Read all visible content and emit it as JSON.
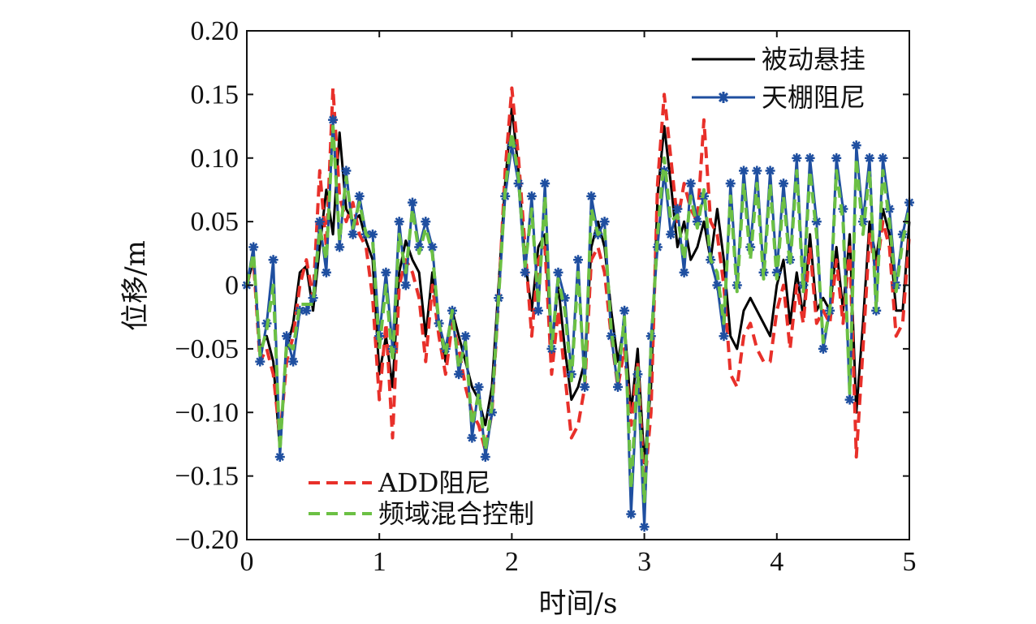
{
  "chart_data": {
    "type": "line",
    "xlabel": "时间/s",
    "ylabel": "位移/m",
    "xlim": [
      0,
      5
    ],
    "ylim": [
      -0.2,
      0.2
    ],
    "x_ticks": [
      0,
      1,
      2,
      3,
      4,
      5
    ],
    "x_tick_labels": [
      "0",
      "1",
      "2",
      "3",
      "4",
      "5"
    ],
    "y_ticks": [
      0.2,
      0.15,
      0.1,
      0.05,
      0,
      -0.05,
      -0.1,
      -0.15,
      -0.2
    ],
    "y_tick_labels": [
      "0.20",
      "0.15",
      "0.10",
      "0.05",
      "0",
      "−0.05",
      "−0.10",
      "−0.15",
      "−0.20"
    ],
    "grid": false,
    "legend_upper": {
      "placement": "top-right",
      "entries": [
        "被动悬挂",
        "天棚阻尼"
      ]
    },
    "legend_lower": {
      "placement": "bottom-left",
      "entries": [
        "ADD阻尼",
        "频域混合控制"
      ]
    },
    "series": [
      {
        "name": "被动悬挂",
        "color": "#000000",
        "style": "solid",
        "x": [
          0,
          0.05,
          0.1,
          0.15,
          0.2,
          0.25,
          0.3,
          0.35,
          0.4,
          0.45,
          0.5,
          0.55,
          0.6,
          0.65,
          0.7,
          0.75,
          0.8,
          0.85,
          0.9,
          0.95,
          1.0,
          1.05,
          1.1,
          1.15,
          1.2,
          1.25,
          1.3,
          1.35,
          1.4,
          1.45,
          1.5,
          1.55,
          1.6,
          1.65,
          1.7,
          1.75,
          1.8,
          1.85,
          1.9,
          1.95,
          2.0,
          2.05,
          2.1,
          2.15,
          2.2,
          2.25,
          2.3,
          2.35,
          2.4,
          2.45,
          2.5,
          2.55,
          2.6,
          2.65,
          2.7,
          2.75,
          2.8,
          2.85,
          2.9,
          2.95,
          3.0,
          3.05,
          3.1,
          3.15,
          3.2,
          3.25,
          3.3,
          3.35,
          3.4,
          3.45,
          3.5,
          3.55,
          3.6,
          3.65,
          3.7,
          3.75,
          3.8,
          3.85,
          3.9,
          3.95,
          4.0,
          4.05,
          4.1,
          4.15,
          4.2,
          4.25,
          4.3,
          4.35,
          4.4,
          4.45,
          4.5,
          4.55,
          4.6,
          4.65,
          4.7,
          4.75,
          4.8,
          4.85,
          4.9,
          4.95,
          5.0
        ],
        "y": [
          0.0,
          0.02,
          -0.05,
          -0.04,
          -0.06,
          -0.13,
          -0.05,
          -0.03,
          0.01,
          0.015,
          -0.02,
          0.03,
          0.075,
          0.04,
          0.12,
          0.06,
          0.05,
          0.055,
          0.035,
          0.02,
          -0.07,
          -0.04,
          -0.08,
          0.01,
          0.035,
          0.02,
          0.01,
          -0.04,
          0.01,
          -0.03,
          -0.06,
          -0.02,
          -0.04,
          -0.06,
          -0.08,
          -0.09,
          -0.11,
          -0.08,
          0.0,
          0.08,
          0.14,
          0.09,
          0.02,
          -0.02,
          0.03,
          0.04,
          -0.05,
          0.0,
          -0.05,
          -0.09,
          -0.08,
          -0.06,
          0.03,
          0.05,
          0.03,
          -0.02,
          -0.06,
          -0.03,
          -0.1,
          -0.05,
          -0.14,
          -0.08,
          0.07,
          0.125,
          0.08,
          0.03,
          0.05,
          0.02,
          0.03,
          0.05,
          0.02,
          0.06,
          0.02,
          -0.04,
          -0.05,
          -0.02,
          -0.01,
          -0.02,
          -0.03,
          -0.04,
          0.0,
          0.02,
          -0.03,
          0.01,
          -0.025,
          0.04,
          -0.02,
          -0.01,
          -0.02,
          0.03,
          -0.02,
          0.04,
          -0.1,
          -0.03,
          0.05,
          0.02,
          0.06,
          0.04,
          -0.02,
          -0.02,
          0.05
        ]
      },
      {
        "name": "天棚阻尼",
        "color": "#1f4fa0",
        "style": "solid-with-asterisk-markers",
        "x": [
          0,
          0.05,
          0.1,
          0.15,
          0.2,
          0.25,
          0.3,
          0.35,
          0.4,
          0.45,
          0.5,
          0.55,
          0.6,
          0.65,
          0.7,
          0.75,
          0.8,
          0.85,
          0.9,
          0.95,
          1.0,
          1.05,
          1.1,
          1.15,
          1.2,
          1.25,
          1.3,
          1.35,
          1.4,
          1.45,
          1.5,
          1.55,
          1.6,
          1.65,
          1.7,
          1.75,
          1.8,
          1.85,
          1.9,
          1.95,
          2.0,
          2.05,
          2.1,
          2.15,
          2.2,
          2.25,
          2.3,
          2.35,
          2.4,
          2.45,
          2.5,
          2.55,
          2.6,
          2.65,
          2.7,
          2.75,
          2.8,
          2.85,
          2.9,
          2.95,
          3.0,
          3.05,
          3.1,
          3.15,
          3.2,
          3.25,
          3.3,
          3.35,
          3.4,
          3.45,
          3.5,
          3.55,
          3.6,
          3.65,
          3.7,
          3.75,
          3.8,
          3.85,
          3.9,
          3.95,
          4.0,
          4.05,
          4.1,
          4.15,
          4.2,
          4.25,
          4.3,
          4.35,
          4.4,
          4.45,
          4.5,
          4.55,
          4.6,
          4.65,
          4.7,
          4.75,
          4.8,
          4.85,
          4.9,
          4.95,
          5.0
        ],
        "y": [
          0.0,
          0.03,
          -0.06,
          -0.03,
          0.02,
          -0.135,
          -0.04,
          -0.06,
          -0.02,
          -0.02,
          -0.01,
          0.05,
          0.01,
          0.13,
          0.03,
          0.09,
          0.04,
          0.07,
          0.04,
          0.04,
          -0.04,
          0.01,
          -0.05,
          0.05,
          0.0,
          0.065,
          0.03,
          0.05,
          0.03,
          -0.03,
          -0.05,
          -0.02,
          -0.07,
          -0.04,
          -0.12,
          -0.08,
          -0.135,
          -0.1,
          -0.01,
          0.07,
          0.11,
          0.08,
          0.01,
          0.07,
          -0.02,
          0.08,
          -0.05,
          0.01,
          -0.01,
          -0.07,
          0.02,
          -0.08,
          0.07,
          0.04,
          0.05,
          -0.04,
          -0.08,
          -0.02,
          -0.18,
          -0.07,
          -0.19,
          -0.04,
          0.03,
          0.09,
          0.04,
          0.06,
          0.01,
          0.08,
          0.05,
          0.07,
          0.02,
          0.0,
          -0.04,
          0.08,
          0.0,
          0.09,
          0.03,
          0.09,
          0.01,
          0.09,
          0.01,
          0.08,
          0.02,
          0.1,
          0.0,
          0.1,
          0.05,
          -0.05,
          -0.02,
          0.1,
          0.06,
          -0.09,
          0.11,
          0.05,
          0.1,
          -0.02,
          0.1,
          0.06,
          0.0,
          0.04,
          0.065
        ]
      },
      {
        "name": "ADD阻尼",
        "color": "#e8302a",
        "style": "dashed",
        "x": [
          0,
          0.05,
          0.1,
          0.15,
          0.2,
          0.25,
          0.3,
          0.35,
          0.4,
          0.45,
          0.5,
          0.55,
          0.6,
          0.65,
          0.7,
          0.75,
          0.8,
          0.85,
          0.9,
          0.95,
          1.0,
          1.05,
          1.1,
          1.15,
          1.2,
          1.25,
          1.3,
          1.35,
          1.4,
          1.45,
          1.5,
          1.55,
          1.6,
          1.65,
          1.7,
          1.75,
          1.8,
          1.85,
          1.9,
          1.95,
          2.0,
          2.05,
          2.1,
          2.15,
          2.2,
          2.25,
          2.3,
          2.35,
          2.4,
          2.45,
          2.5,
          2.55,
          2.6,
          2.65,
          2.7,
          2.75,
          2.8,
          2.85,
          2.9,
          2.95,
          3.0,
          3.05,
          3.1,
          3.15,
          3.2,
          3.25,
          3.3,
          3.35,
          3.4,
          3.45,
          3.5,
          3.55,
          3.6,
          3.65,
          3.7,
          3.75,
          3.8,
          3.85,
          3.9,
          3.95,
          4.0,
          4.05,
          4.1,
          4.15,
          4.2,
          4.25,
          4.3,
          4.35,
          4.4,
          4.45,
          4.5,
          4.55,
          4.6,
          4.65,
          4.7,
          4.75,
          4.8,
          4.85,
          4.9,
          4.95,
          5.0
        ],
        "y": [
          0.0,
          0.02,
          -0.06,
          -0.05,
          -0.07,
          -0.12,
          -0.06,
          -0.04,
          0.0,
          0.02,
          -0.01,
          0.09,
          0.03,
          0.155,
          0.07,
          0.05,
          0.065,
          0.04,
          0.03,
          -0.01,
          -0.09,
          -0.03,
          -0.12,
          0.0,
          0.02,
          0.01,
          -0.01,
          -0.06,
          0.0,
          -0.04,
          -0.07,
          -0.03,
          -0.05,
          -0.08,
          -0.1,
          -0.11,
          -0.13,
          -0.1,
          -0.01,
          0.09,
          0.155,
          0.1,
          0.03,
          -0.04,
          0.02,
          0.03,
          -0.07,
          -0.02,
          -0.07,
          -0.12,
          -0.11,
          -0.08,
          0.02,
          0.03,
          0.01,
          -0.04,
          -0.08,
          -0.05,
          -0.11,
          -0.06,
          -0.16,
          -0.1,
          0.08,
          0.15,
          0.1,
          0.05,
          0.08,
          0.06,
          0.05,
          0.13,
          0.05,
          0.04,
          0.0,
          -0.07,
          -0.08,
          -0.04,
          -0.03,
          -0.05,
          -0.06,
          -0.06,
          -0.02,
          0.0,
          -0.05,
          0.0,
          -0.03,
          0.03,
          -0.03,
          -0.02,
          -0.03,
          0.02,
          -0.03,
          0.03,
          -0.135,
          -0.05,
          0.04,
          0.01,
          0.05,
          0.03,
          -0.04,
          -0.03,
          0.04
        ]
      },
      {
        "name": "频域混合控制",
        "color": "#6cc044",
        "style": "dashed",
        "x": [
          0,
          0.05,
          0.1,
          0.15,
          0.2,
          0.25,
          0.3,
          0.35,
          0.4,
          0.45,
          0.5,
          0.55,
          0.6,
          0.65,
          0.7,
          0.75,
          0.8,
          0.85,
          0.9,
          0.95,
          1.0,
          1.05,
          1.1,
          1.15,
          1.2,
          1.25,
          1.3,
          1.35,
          1.4,
          1.45,
          1.5,
          1.55,
          1.6,
          1.65,
          1.7,
          1.75,
          1.8,
          1.85,
          1.9,
          1.95,
          2.0,
          2.05,
          2.1,
          2.15,
          2.2,
          2.25,
          2.3,
          2.35,
          2.4,
          2.45,
          2.5,
          2.55,
          2.6,
          2.65,
          2.7,
          2.75,
          2.8,
          2.85,
          2.9,
          2.95,
          3.0,
          3.05,
          3.1,
          3.15,
          3.2,
          3.25,
          3.3,
          3.35,
          3.4,
          3.45,
          3.5,
          3.55,
          3.6,
          3.65,
          3.7,
          3.75,
          3.8,
          3.85,
          3.9,
          3.95,
          4.0,
          4.05,
          4.1,
          4.15,
          4.2,
          4.25,
          4.3,
          4.35,
          4.4,
          4.45,
          4.5,
          4.55,
          4.6,
          4.65,
          4.7,
          4.75,
          4.8,
          4.85,
          4.9,
          4.95,
          5.0
        ],
        "y": [
          0.0,
          0.025,
          -0.055,
          -0.035,
          0.0,
          -0.13,
          -0.045,
          -0.05,
          -0.015,
          -0.015,
          -0.015,
          0.045,
          0.02,
          0.125,
          0.035,
          0.085,
          0.045,
          0.065,
          0.04,
          0.035,
          -0.05,
          0.0,
          -0.06,
          0.04,
          0.01,
          0.06,
          0.025,
          0.045,
          0.025,
          -0.03,
          -0.055,
          -0.02,
          -0.065,
          -0.045,
          -0.11,
          -0.085,
          -0.13,
          -0.095,
          -0.01,
          0.075,
          0.12,
          0.085,
          0.015,
          0.06,
          -0.015,
          0.07,
          -0.05,
          0.005,
          -0.02,
          -0.075,
          0.01,
          -0.075,
          0.06,
          0.04,
          0.045,
          -0.035,
          -0.075,
          -0.025,
          -0.16,
          -0.065,
          -0.17,
          -0.05,
          0.04,
          0.1,
          0.05,
          0.055,
          0.02,
          0.07,
          0.045,
          0.075,
          0.02,
          0.01,
          -0.03,
          0.07,
          -0.005,
          0.08,
          0.02,
          0.08,
          0.005,
          0.08,
          0.005,
          0.07,
          0.015,
          0.09,
          -0.005,
          0.09,
          0.04,
          -0.045,
          -0.02,
          0.09,
          0.05,
          -0.085,
          0.1,
          0.04,
          0.09,
          -0.02,
          0.09,
          0.05,
          -0.005,
          0.035,
          0.06
        ]
      }
    ]
  }
}
